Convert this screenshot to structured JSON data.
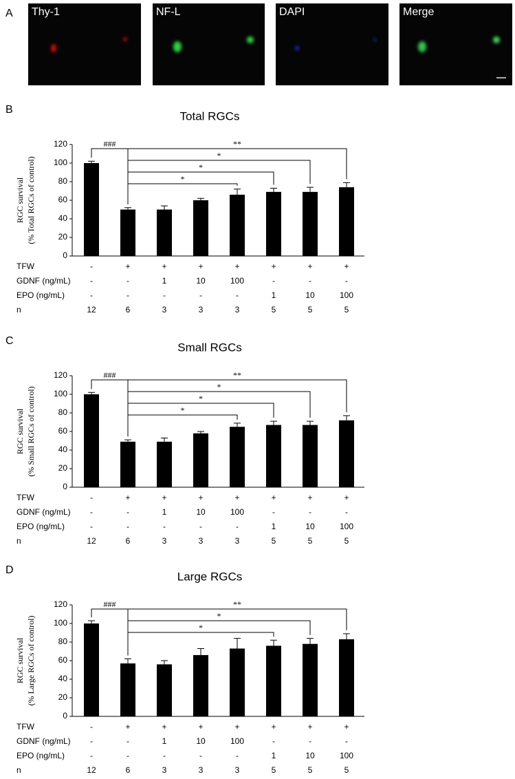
{
  "panel_labels": [
    "A",
    "B",
    "C",
    "D"
  ],
  "image_labels": [
    "Thy-1",
    "NF-L",
    "DAPI",
    "Merge"
  ],
  "chart_data": [
    {
      "type": "bar",
      "title": "Total RGCs",
      "ylabel": [
        "RGC survival",
        "(% Total RGCs of control)"
      ],
      "values": [
        100,
        50,
        50,
        60,
        66,
        69,
        69,
        74
      ],
      "errors": [
        2,
        2,
        4,
        2,
        6,
        4,
        5,
        5
      ],
      "color": "#000000",
      "ylim": [
        0,
        120
      ],
      "yticks": [
        0,
        20,
        40,
        60,
        80,
        100,
        120
      ],
      "annotations": [
        {
          "label": "###",
          "from": 0,
          "to": 1
        },
        {
          "label": "**",
          "from": 1,
          "to": 7
        },
        {
          "label": "*",
          "from": 1,
          "to": 6
        },
        {
          "label": "*",
          "from": 1,
          "to": 5
        },
        {
          "label": "*",
          "from": 1,
          "to": 4
        }
      ],
      "table": [
        {
          "label": "TFW",
          "cells": [
            "-",
            "+",
            "+",
            "+",
            "+",
            "+",
            "+",
            "+"
          ]
        },
        {
          "label": "GDNF (ng/mL)",
          "cells": [
            "-",
            "-",
            "1",
            "10",
            "100",
            "-",
            "-",
            "-"
          ]
        },
        {
          "label": "EPO (ng/mL)",
          "cells": [
            "-",
            "-",
            "-",
            "-",
            "-",
            "1",
            "10",
            "100"
          ]
        },
        {
          "label": "n",
          "cells": [
            12,
            6,
            3,
            3,
            3,
            5,
            5,
            5
          ]
        }
      ]
    },
    {
      "type": "bar",
      "title": "Small RGCs",
      "ylabel": [
        "RGC survival",
        "(% Small RGCs of control)"
      ],
      "values": [
        100,
        49,
        49,
        58,
        65,
        67,
        67,
        72
      ],
      "errors": [
        2,
        2,
        4,
        2,
        4,
        4,
        4,
        5
      ],
      "color": "#000000",
      "ylim": [
        0,
        120
      ],
      "yticks": [
        0,
        20,
        40,
        60,
        80,
        100,
        120
      ],
      "annotations": [
        {
          "label": "###",
          "from": 0,
          "to": 1
        },
        {
          "label": "**",
          "from": 1,
          "to": 7
        },
        {
          "label": "*",
          "from": 1,
          "to": 6
        },
        {
          "label": "*",
          "from": 1,
          "to": 5
        },
        {
          "label": "*",
          "from": 1,
          "to": 4
        }
      ],
      "table": [
        {
          "label": "TFW",
          "cells": [
            "-",
            "+",
            "+",
            "+",
            "+",
            "+",
            "+",
            "+"
          ]
        },
        {
          "label": "GDNF (ng/mL)",
          "cells": [
            "-",
            "-",
            "1",
            "10",
            "100",
            "-",
            "-",
            "-"
          ]
        },
        {
          "label": "EPO (ng/mL)",
          "cells": [
            "-",
            "-",
            "-",
            "-",
            "-",
            "1",
            "10",
            "100"
          ]
        },
        {
          "label": "n",
          "cells": [
            12,
            6,
            3,
            3,
            3,
            5,
            5,
            5
          ]
        }
      ]
    },
    {
      "type": "bar",
      "title": "Large RGCs",
      "ylabel": [
        "RGC survival",
        "(% Large RGCs of control)"
      ],
      "values": [
        100,
        57,
        56,
        66,
        73,
        76,
        78,
        83
      ],
      "errors": [
        3,
        5,
        4,
        7,
        11,
        6,
        6,
        6
      ],
      "color": "#000000",
      "ylim": [
        0,
        120
      ],
      "yticks": [
        0,
        20,
        40,
        60,
        80,
        100,
        120
      ],
      "annotations": [
        {
          "label": "###",
          "from": 0,
          "to": 1
        },
        {
          "label": "**",
          "from": 1,
          "to": 7
        },
        {
          "label": "*",
          "from": 1,
          "to": 6
        },
        {
          "label": "*",
          "from": 1,
          "to": 5
        }
      ],
      "table": [
        {
          "label": "TFW",
          "cells": [
            "-",
            "+",
            "+",
            "+",
            "+",
            "+",
            "+",
            "+"
          ]
        },
        {
          "label": "GDNF (ng/mL)",
          "cells": [
            "-",
            "-",
            "1",
            "10",
            "100",
            "-",
            "-",
            "-"
          ]
        },
        {
          "label": "EPO (ng/mL)",
          "cells": [
            "-",
            "-",
            "-",
            "-",
            "-",
            "1",
            "10",
            "100"
          ]
        },
        {
          "label": "n",
          "cells": [
            12,
            6,
            3,
            3,
            3,
            5,
            5,
            5
          ]
        }
      ]
    }
  ]
}
